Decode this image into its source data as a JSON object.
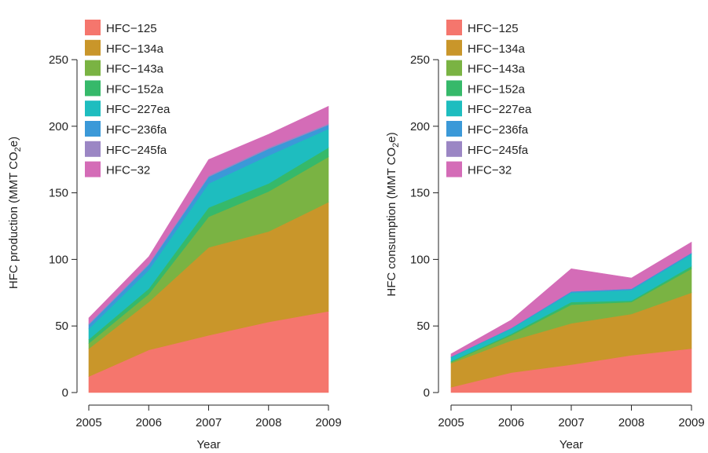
{
  "chart_data": [
    {
      "type": "area",
      "stacked": true,
      "xlabel": "Year",
      "ylabel": "HFC production (MMT CO",
      "ylabel_sub": "2",
      "ylabel_end": "e)",
      "x": [
        2005,
        2006,
        2007,
        2008,
        2009
      ],
      "xlim": [
        2005,
        2009
      ],
      "ylim": [
        0,
        280
      ],
      "yticks": [
        0,
        50,
        100,
        150,
        200,
        250
      ],
      "grid": false,
      "legend": "top-left",
      "series": [
        {
          "name": "HFC−125",
          "color": "#f5766d",
          "values": [
            12,
            32,
            43,
            53,
            61
          ]
        },
        {
          "name": "HFC−134a",
          "color": "#c9962a",
          "values": [
            21,
            36,
            66,
            68,
            82
          ]
        },
        {
          "name": "HFC−143a",
          "color": "#7ab343",
          "values": [
            4,
            6,
            23,
            30,
            34
          ]
        },
        {
          "name": "HFC−152a",
          "color": "#36b96a",
          "values": [
            3,
            4,
            7,
            6,
            7
          ]
        },
        {
          "name": "HFC−227ea",
          "color": "#1ebdbf",
          "values": [
            8,
            14,
            18,
            21,
            14
          ]
        },
        {
          "name": "HFC−236fa",
          "color": "#3b99d8",
          "values": [
            3,
            4,
            5,
            5,
            3
          ]
        },
        {
          "name": "HFC−245fa",
          "color": "#9b86c4",
          "values": [
            1,
            1,
            1,
            1,
            1
          ]
        },
        {
          "name": "HFC−32",
          "color": "#d46cb7",
          "values": [
            4,
            5,
            12,
            10,
            13
          ]
        }
      ]
    },
    {
      "type": "area",
      "stacked": true,
      "xlabel": "Year",
      "ylabel": "HFC consumption (MMT CO",
      "ylabel_sub": "2",
      "ylabel_end": "e)",
      "x": [
        2005,
        2006,
        2007,
        2008,
        2009
      ],
      "xlim": [
        2005,
        2009
      ],
      "ylim": [
        0,
        280
      ],
      "yticks": [
        0,
        50,
        100,
        150,
        200,
        250
      ],
      "grid": false,
      "legend": "top-left",
      "series": [
        {
          "name": "HFC−125",
          "color": "#f5766d",
          "values": [
            4,
            15,
            21,
            28,
            33
          ]
        },
        {
          "name": "HFC−134a",
          "color": "#c9962a",
          "values": [
            18,
            24,
            31,
            31,
            42
          ]
        },
        {
          "name": "HFC−143a",
          "color": "#7ab343",
          "values": [
            1,
            4,
            14,
            9,
            18
          ]
        },
        {
          "name": "HFC−152a",
          "color": "#36b96a",
          "values": [
            0.5,
            1,
            2,
            1,
            2
          ]
        },
        {
          "name": "HFC−227ea",
          "color": "#1ebdbf",
          "values": [
            3,
            4,
            7,
            8,
            9
          ]
        },
        {
          "name": "HFC−236fa",
          "color": "#3b99d8",
          "values": [
            0.5,
            0.5,
            1,
            1,
            1
          ]
        },
        {
          "name": "HFC−245fa",
          "color": "#9b86c4",
          "values": [
            0,
            0,
            0,
            0,
            0
          ]
        },
        {
          "name": "HFC−32",
          "color": "#d46cb7",
          "values": [
            2,
            6,
            17,
            8,
            8
          ]
        }
      ]
    }
  ]
}
